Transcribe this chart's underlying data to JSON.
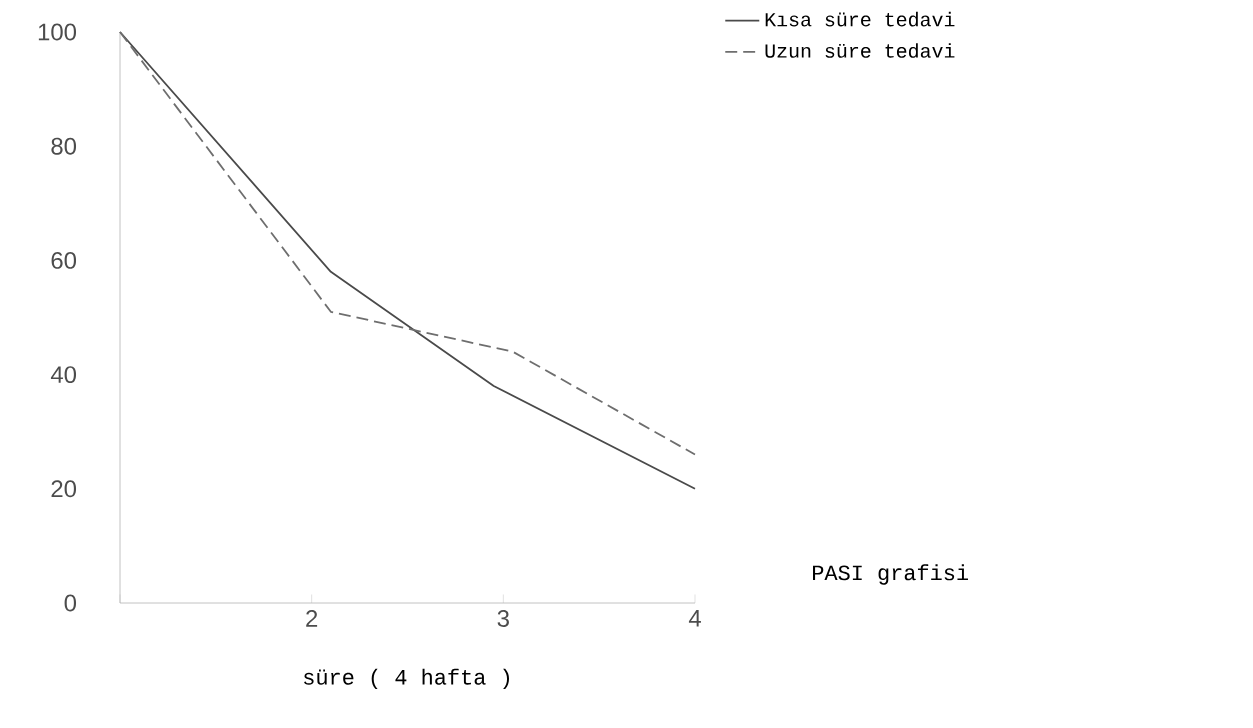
{
  "chart_data": {
    "type": "line",
    "xlabel": "süre ( 4 hafta )",
    "annotations": [
      "PASI grafisi"
    ],
    "xlim": [
      1,
      4
    ],
    "xticks": [
      {
        "value": 1,
        "label": null
      },
      2,
      3,
      4
    ],
    "ylim": [
      0,
      100
    ],
    "yticks": [
      0,
      20,
      40,
      60,
      80,
      100
    ],
    "legend": "top right",
    "grid": false,
    "series": [
      {
        "name": "Kısa süre tedavi",
        "color": "#4a4a4a",
        "line_style": "solid",
        "x": [
          1,
          2.1,
          2.95,
          4
        ],
        "values": [
          100,
          58,
          38,
          20
        ]
      },
      {
        "name": "Uzun süre tedavi",
        "color": "#6e6e6e",
        "line_style": "dashed",
        "x": [
          1,
          2.1,
          3.05,
          4
        ],
        "values": [
          100,
          51,
          44,
          26
        ]
      }
    ]
  }
}
